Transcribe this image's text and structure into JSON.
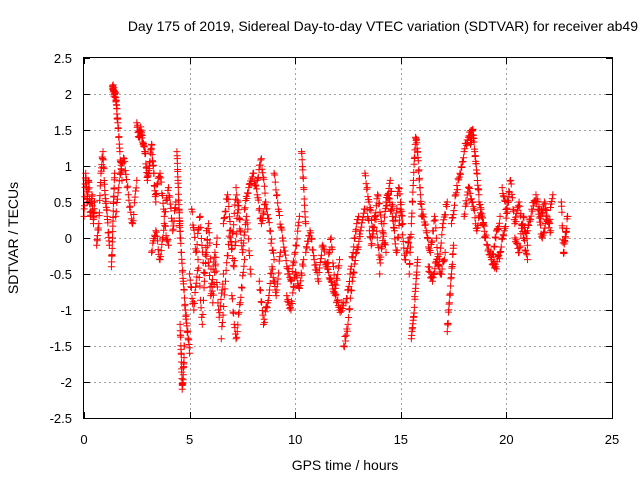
{
  "chart_data": {
    "type": "scatter",
    "title": "Day 175 of 2019, Sidereal Day-to-day VTEC variation (SDTVAR) for receiver ab49",
    "xlabel": "GPS time / hours",
    "ylabel": "SDTVAR / TECUs",
    "xlim": [
      0,
      25
    ],
    "ylim": [
      -2.5,
      2.5
    ],
    "xticks": [
      0,
      5,
      10,
      15,
      20,
      25
    ],
    "yticks": [
      2.5,
      2,
      1.5,
      1,
      0.5,
      0,
      -0.5,
      -1,
      -1.5,
      -2,
      -2.5
    ],
    "grid": true,
    "marker": "plus",
    "color": "#ff0000",
    "series": [
      {
        "name": "ab49",
        "segments": [
          {
            "x": [
              0.0,
              0.08,
              0.15,
              0.22,
              0.3,
              0.38,
              0.45,
              0.5
            ],
            "y": [
              0.3,
              0.9,
              0.5,
              0.8,
              0.3,
              0.6,
              0.2,
              0.5
            ]
          },
          {
            "x": [
              0.6,
              0.7,
              0.8,
              0.9,
              1.0,
              1.1,
              1.2
            ],
            "y": [
              -0.1,
              0.2,
              0.9,
              1.2,
              0.6,
              0.3,
              -0.1
            ]
          },
          {
            "x": [
              1.35,
              1.4,
              1.45,
              1.5,
              1.55,
              1.6,
              1.7,
              1.8
            ],
            "y": [
              2.1,
              2.05,
              2.0,
              1.95,
              1.8,
              1.6,
              1.2,
              0.8
            ]
          },
          {
            "x": [
              1.3,
              1.35,
              1.4,
              1.45
            ],
            "y": [
              -0.4,
              0.0,
              0.5,
              0.9
            ]
          },
          {
            "x": [
              1.5,
              1.7,
              1.9,
              2.1,
              2.3,
              2.5
            ],
            "y": [
              0.3,
              0.9,
              1.1,
              0.6,
              0.2,
              0.8
            ]
          },
          {
            "x": [
              2.5,
              2.6,
              2.7,
              2.8,
              2.9,
              3.0,
              3.1,
              3.2,
              3.3,
              3.4
            ],
            "y": [
              1.6,
              1.4,
              1.5,
              1.3,
              1.2,
              0.8,
              1.0,
              1.3,
              0.9,
              0.5
            ]
          },
          {
            "x": [
              3.4,
              3.6,
              3.8,
              4.0,
              4.2,
              4.35
            ],
            "y": [
              0.6,
              0.9,
              0.3,
              0.7,
              0.1,
              0.5
            ]
          },
          {
            "x": [
              3.2,
              3.4,
              3.6,
              3.8,
              4.0
            ],
            "y": [
              -0.2,
              0.1,
              -0.3,
              0.2,
              -0.1
            ]
          },
          {
            "x": [
              4.4,
              4.45,
              4.5,
              4.55
            ],
            "y": [
              1.2,
              0.8,
              0.4,
              0.0
            ]
          },
          {
            "x": [
              4.55,
              4.6,
              4.65,
              4.7,
              4.75
            ],
            "y": [
              -1.2,
              -1.6,
              -2.1,
              -1.9,
              -1.5
            ]
          },
          {
            "x": [
              4.5,
              4.6,
              4.7,
              4.8,
              4.9,
              5.0
            ],
            "y": [
              0.4,
              -0.2,
              -0.6,
              -1.0,
              -1.3,
              -1.6
            ]
          },
          {
            "x": [
              5.0,
              5.2,
              5.4,
              5.6,
              5.8,
              6.0,
              6.2,
              6.4,
              6.6
            ],
            "y": [
              -0.5,
              -1.0,
              -0.3,
              -1.2,
              0.1,
              -0.8,
              -0.2,
              -1.1,
              -0.5
            ]
          },
          {
            "x": [
              5.1,
              5.3,
              5.5,
              5.7,
              5.9,
              6.1,
              6.3
            ],
            "y": [
              0.4,
              -0.2,
              0.3,
              -0.6,
              0.2,
              -0.9,
              0.0
            ]
          },
          {
            "x": [
              6.5,
              6.7,
              6.9,
              7.1,
              7.3,
              7.5,
              7.7,
              7.9
            ],
            "y": [
              -1.4,
              -0.6,
              0.1,
              -0.4,
              0.5,
              -0.2,
              0.3,
              -0.5
            ]
          },
          {
            "x": [
              6.6,
              6.8,
              7.0,
              7.2,
              7.4
            ],
            "y": [
              0.2,
              0.6,
              -0.1,
              0.7,
              0.1
            ]
          },
          {
            "x": [
              7.0,
              7.2,
              7.4,
              7.6
            ],
            "y": [
              -0.8,
              -1.4,
              -0.9,
              -0.3
            ]
          },
          {
            "x": [
              7.6,
              7.8,
              8.0,
              8.2,
              8.4,
              8.6
            ],
            "y": [
              0.4,
              0.7,
              0.9,
              0.6,
              0.2,
              0.5
            ]
          },
          {
            "x": [
              8.3,
              8.5,
              8.7,
              8.9,
              9.1,
              9.3
            ],
            "y": [
              -0.6,
              -1.2,
              -0.9,
              -0.4,
              -0.8,
              -0.2
            ]
          },
          {
            "x": [
              8.2,
              8.4,
              8.6,
              8.8,
              9.0
            ],
            "y": [
              0.8,
              1.1,
              0.5,
              0.1,
              -0.3
            ]
          },
          {
            "x": [
              9.0,
              9.2,
              9.4,
              9.6,
              9.8,
              10.0,
              10.2
            ],
            "y": [
              0.9,
              0.4,
              0.0,
              -0.4,
              -0.6,
              -0.2,
              0.3
            ]
          },
          {
            "x": [
              9.6,
              9.8,
              10.0,
              10.2,
              10.4
            ],
            "y": [
              -0.8,
              -1.0,
              -0.5,
              -0.7,
              -0.3
            ]
          },
          {
            "x": [
              10.3,
              10.4,
              10.5
            ],
            "y": [
              1.2,
              0.7,
              0.2
            ]
          },
          {
            "x": [
              10.5,
              10.7,
              10.9,
              11.1,
              11.3,
              11.5,
              11.7,
              11.9,
              12.1
            ],
            "y": [
              -0.2,
              0.1,
              -0.3,
              -0.6,
              -0.1,
              -0.4,
              0.0,
              -0.7,
              -0.3
            ]
          },
          {
            "x": [
              11.5,
              11.7,
              11.9,
              12.1,
              12.3
            ],
            "y": [
              -0.4,
              -0.6,
              -0.8,
              -1.0,
              -0.9
            ]
          },
          {
            "x": [
              12.3,
              12.5,
              12.7,
              12.9,
              13.1,
              13.3
            ],
            "y": [
              -1.5,
              -1.2,
              -0.6,
              -0.2,
              0.1,
              0.4
            ]
          },
          {
            "x": [
              12.4,
              12.6,
              12.8,
              13.0
            ],
            "y": [
              -0.9,
              -0.5,
              0.0,
              0.3
            ]
          },
          {
            "x": [
              13.3,
              13.5,
              13.7,
              13.9,
              14.1,
              14.3
            ],
            "y": [
              0.9,
              0.5,
              0.1,
              0.6,
              0.2,
              -0.2
            ]
          },
          {
            "x": [
              13.4,
              13.6,
              13.8,
              14.0
            ],
            "y": [
              0.4,
              -0.1,
              0.3,
              -0.3
            ]
          },
          {
            "x": [
              14.0,
              14.2,
              14.4,
              14.6,
              14.8,
              15.0,
              15.2,
              15.4
            ],
            "y": [
              -0.5,
              0.2,
              0.6,
              0.3,
              -0.2,
              0.4,
              -0.3,
              0.0
            ]
          },
          {
            "x": [
              14.3,
              14.5,
              14.7,
              14.9,
              15.1
            ],
            "y": [
              0.5,
              0.8,
              0.1,
              0.7,
              0.2
            ]
          },
          {
            "x": [
              15.4,
              15.5,
              15.6,
              15.7,
              15.8,
              15.9,
              16.0
            ],
            "y": [
              -0.5,
              0.2,
              0.8,
              1.4,
              1.2,
              0.7,
              0.3
            ]
          },
          {
            "x": [
              15.5,
              15.6,
              15.7,
              15.8
            ],
            "y": [
              -1.4,
              -1.1,
              -0.7,
              -0.3
            ]
          },
          {
            "x": [
              16.0,
              16.2,
              16.4,
              16.6,
              16.8,
              17.0,
              17.2
            ],
            "y": [
              0.4,
              0.1,
              -0.2,
              0.3,
              -0.4,
              0.2,
              0.5
            ]
          },
          {
            "x": [
              16.3,
              16.5,
              16.7,
              16.9,
              17.1
            ],
            "y": [
              -0.4,
              -0.6,
              -0.3,
              -0.5,
              -0.2
            ]
          },
          {
            "x": [
              17.2,
              17.3,
              17.4,
              17.5
            ],
            "y": [
              -1.3,
              -0.9,
              -0.5,
              -0.1
            ]
          },
          {
            "x": [
              17.4,
              17.6,
              17.8,
              18.0,
              18.2,
              18.4
            ],
            "y": [
              0.2,
              0.6,
              0.9,
              1.2,
              1.4,
              1.5
            ]
          },
          {
            "x": [
              18.3,
              18.4,
              18.5,
              18.6,
              18.7
            ],
            "y": [
              1.3,
              1.5,
              1.2,
              0.9,
              0.6
            ]
          },
          {
            "x": [
              18.0,
              18.2,
              18.4,
              18.6,
              18.8,
              19.0
            ],
            "y": [
              0.3,
              0.7,
              0.5,
              0.1,
              0.4,
              0.0
            ]
          },
          {
            "x": [
              18.7,
              18.9,
              19.1,
              19.3,
              19.5,
              19.7
            ],
            "y": [
              0.5,
              0.2,
              -0.1,
              -0.3,
              0.0,
              0.3
            ]
          },
          {
            "x": [
              19.3,
              19.5,
              19.7,
              19.9,
              20.1
            ],
            "y": [
              -0.3,
              -0.4,
              -0.2,
              0.1,
              0.5
            ]
          },
          {
            "x": [
              19.8,
              20.0,
              20.2,
              20.4,
              20.6,
              20.8,
              21.0
            ],
            "y": [
              0.7,
              0.4,
              0.8,
              0.2,
              0.5,
              0.0,
              -0.3
            ]
          },
          {
            "x": [
              20.4,
              20.6,
              20.8,
              21.0
            ],
            "y": [
              0.0,
              -0.2,
              0.3,
              -0.1
            ]
          },
          {
            "x": [
              21.0,
              21.2,
              21.4,
              21.6,
              21.8,
              22.0,
              22.2
            ],
            "y": [
              0.1,
              0.4,
              0.6,
              0.3,
              0.5,
              0.2,
              0.6
            ]
          },
          {
            "x": [
              21.5,
              21.7,
              21.9,
              22.1
            ],
            "y": [
              0.4,
              0.0,
              0.3,
              0.1
            ]
          },
          {
            "x": [
              22.6,
              22.7,
              22.8,
              22.9
            ],
            "y": [
              0.5,
              -0.2,
              0.0,
              0.3
            ]
          }
        ]
      }
    ]
  }
}
